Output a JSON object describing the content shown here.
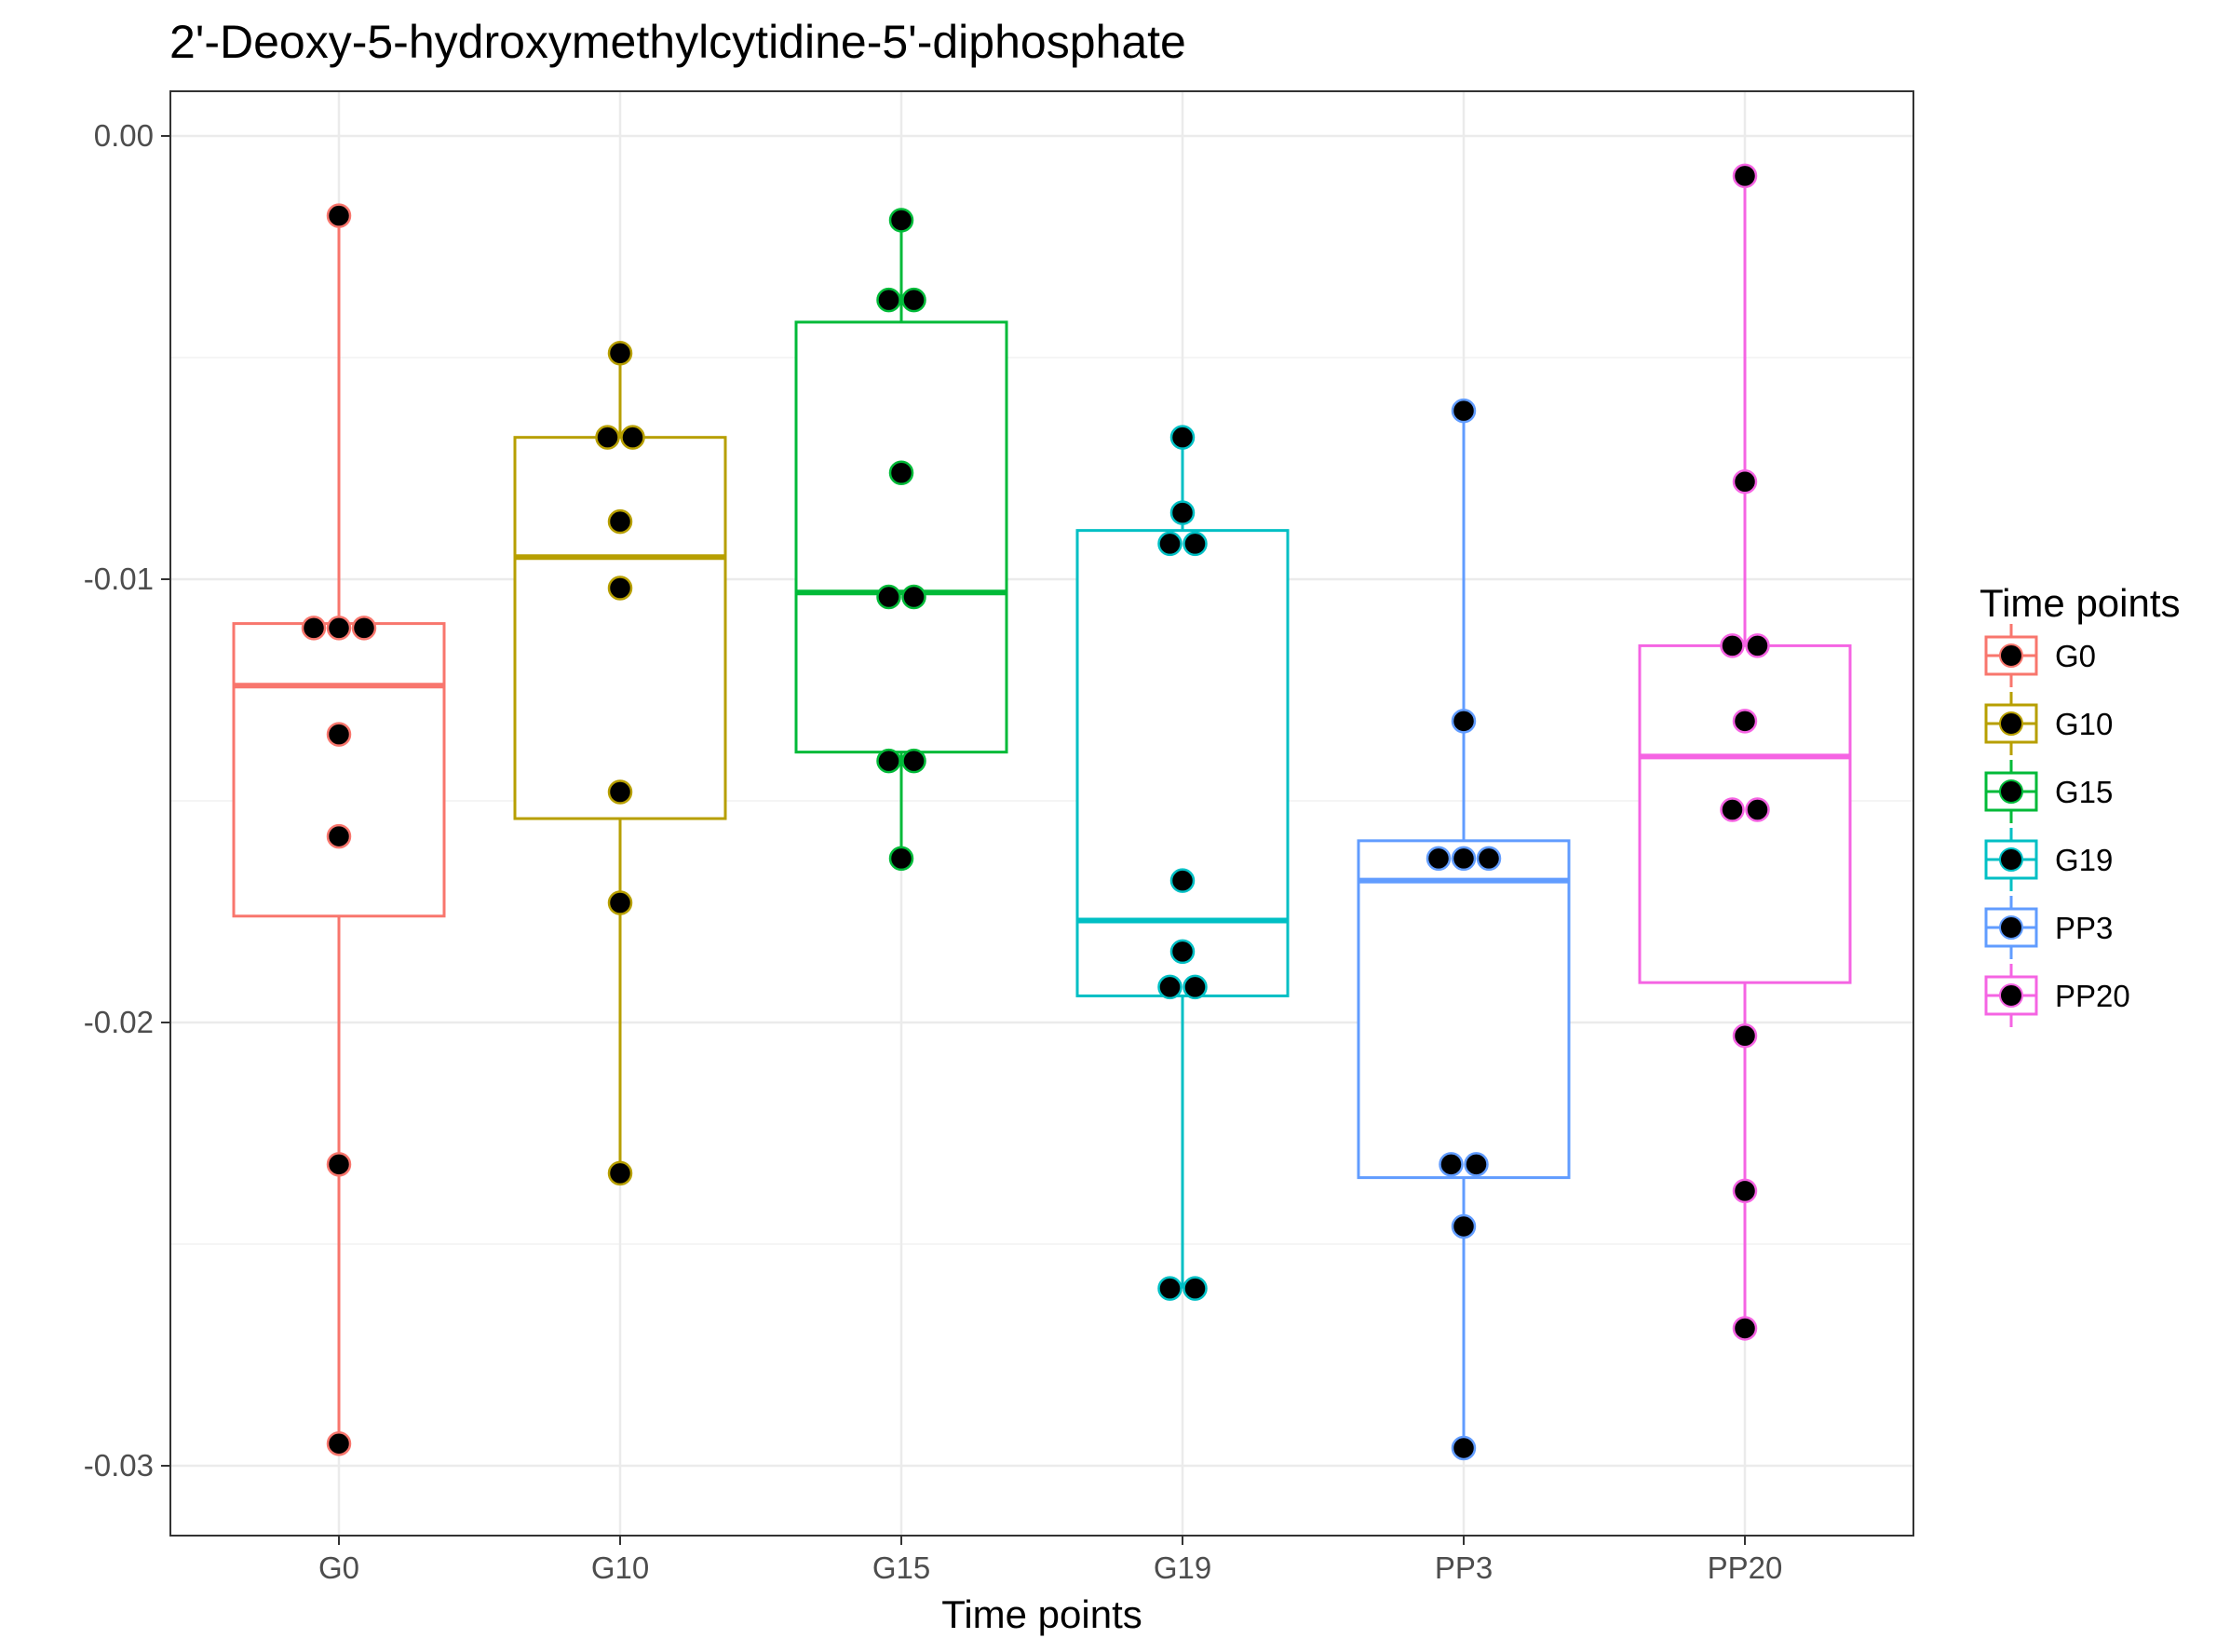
{
  "chart_data": {
    "type": "boxplot",
    "title": "2'-Deoxy-5-hydroxymethylcytidine-5'-diphosphate",
    "xlabel": "Time points",
    "ylabel": "",
    "ylim": [
      -0.0315,
      0.001
    ],
    "y_ticks": [
      0.0,
      -0.01,
      -0.02,
      -0.03
    ],
    "y_tick_labels": [
      "0.00",
      "-0.01",
      "-0.02",
      "-0.03"
    ],
    "categories": [
      "G0",
      "G10",
      "G15",
      "G19",
      "PP3",
      "PP20"
    ],
    "grid": true,
    "legend": {
      "title": "Time points",
      "position": "right",
      "items": [
        "G0",
        "G10",
        "G15",
        "G19",
        "PP3",
        "PP20"
      ]
    },
    "colors": {
      "G0": "#F8766D",
      "G10": "#B79F00",
      "G15": "#00BA38",
      "G19": "#00BFC4",
      "PP3": "#619CFF",
      "PP20": "#F564E3"
    },
    "point_color": "#000000",
    "series": [
      {
        "name": "G0",
        "q1": -0.0176,
        "median": -0.0124,
        "q3": -0.011,
        "whisker_low": -0.0295,
        "whisker_high": -0.0018,
        "points": [
          -0.0018,
          -0.0111,
          -0.0111,
          -0.0111,
          -0.0135,
          -0.0158,
          -0.0232,
          -0.0295
        ]
      },
      {
        "name": "G10",
        "q1": -0.0154,
        "median": -0.0095,
        "q3": -0.0068,
        "whisker_low": -0.0234,
        "whisker_high": -0.0049,
        "points": [
          -0.0049,
          -0.0068,
          -0.0068,
          -0.0087,
          -0.0102,
          -0.0148,
          -0.0173,
          -0.0234
        ]
      },
      {
        "name": "G15",
        "q1": -0.0139,
        "median": -0.0103,
        "q3": -0.0042,
        "whisker_low": -0.0163,
        "whisker_high": -0.0019,
        "points": [
          -0.0019,
          -0.0037,
          -0.0037,
          -0.0076,
          -0.0104,
          -0.0104,
          -0.0141,
          -0.0141,
          -0.0163
        ]
      },
      {
        "name": "G19",
        "q1": -0.0194,
        "median": -0.0177,
        "q3": -0.0089,
        "whisker_low": -0.026,
        "whisker_high": -0.0068,
        "points": [
          -0.0068,
          -0.0085,
          -0.0092,
          -0.0092,
          -0.0168,
          -0.0184,
          -0.0192,
          -0.0192,
          -0.026,
          -0.026
        ]
      },
      {
        "name": "PP3",
        "q1": -0.0235,
        "median": -0.0168,
        "q3": -0.0159,
        "whisker_low": -0.0296,
        "whisker_high": -0.0062,
        "points": [
          -0.0062,
          -0.0132,
          -0.0163,
          -0.0163,
          -0.0163,
          -0.0232,
          -0.0232,
          -0.0246,
          -0.0296
        ]
      },
      {
        "name": "PP20",
        "q1": -0.0191,
        "median": -0.014,
        "q3": -0.0115,
        "whisker_low": -0.0269,
        "whisker_high": -0.0009,
        "points": [
          -0.0009,
          -0.0078,
          -0.0115,
          -0.0115,
          -0.0132,
          -0.0152,
          -0.0152,
          -0.0203,
          -0.0238,
          -0.0269
        ]
      }
    ]
  }
}
